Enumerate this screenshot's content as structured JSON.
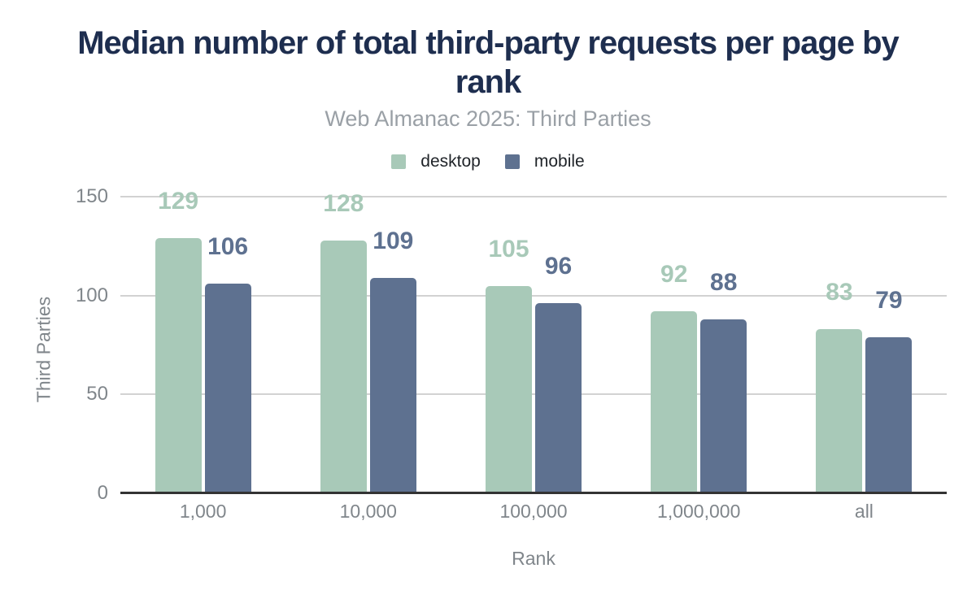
{
  "header": {
    "title": "Median number of total third-party requests per page by rank",
    "subtitle": "Web Almanac 2025: Third Parties"
  },
  "palette": {
    "title_color": "#1e2e4f",
    "subtitle_color": "#9aa0a6",
    "axis_text_color": "#80868b",
    "gridline_color": "#d2d2d2",
    "axis_line_color": "#333333",
    "desktop_color": "#a8c9b8",
    "mobile_color": "#5e7190"
  },
  "chart_data": {
    "type": "bar",
    "title": "Median number of total third-party requests per page by rank",
    "subtitle": "Web Almanac 2025: Third Parties",
    "categories": [
      "1,000",
      "10,000",
      "100,000",
      "1,000,000",
      "all"
    ],
    "series": [
      {
        "name": "desktop",
        "color": "#a8c9b8",
        "values": [
          129,
          128,
          105,
          92,
          83
        ]
      },
      {
        "name": "mobile",
        "color": "#5e7190",
        "values": [
          106,
          109,
          96,
          88,
          79
        ]
      }
    ],
    "xlabel": "Rank",
    "ylabel": "Third Parties",
    "ylim": [
      0,
      150
    ],
    "yticks": [
      0,
      50,
      100,
      150
    ],
    "grid": true,
    "legend_position": "top",
    "annotations": true
  }
}
